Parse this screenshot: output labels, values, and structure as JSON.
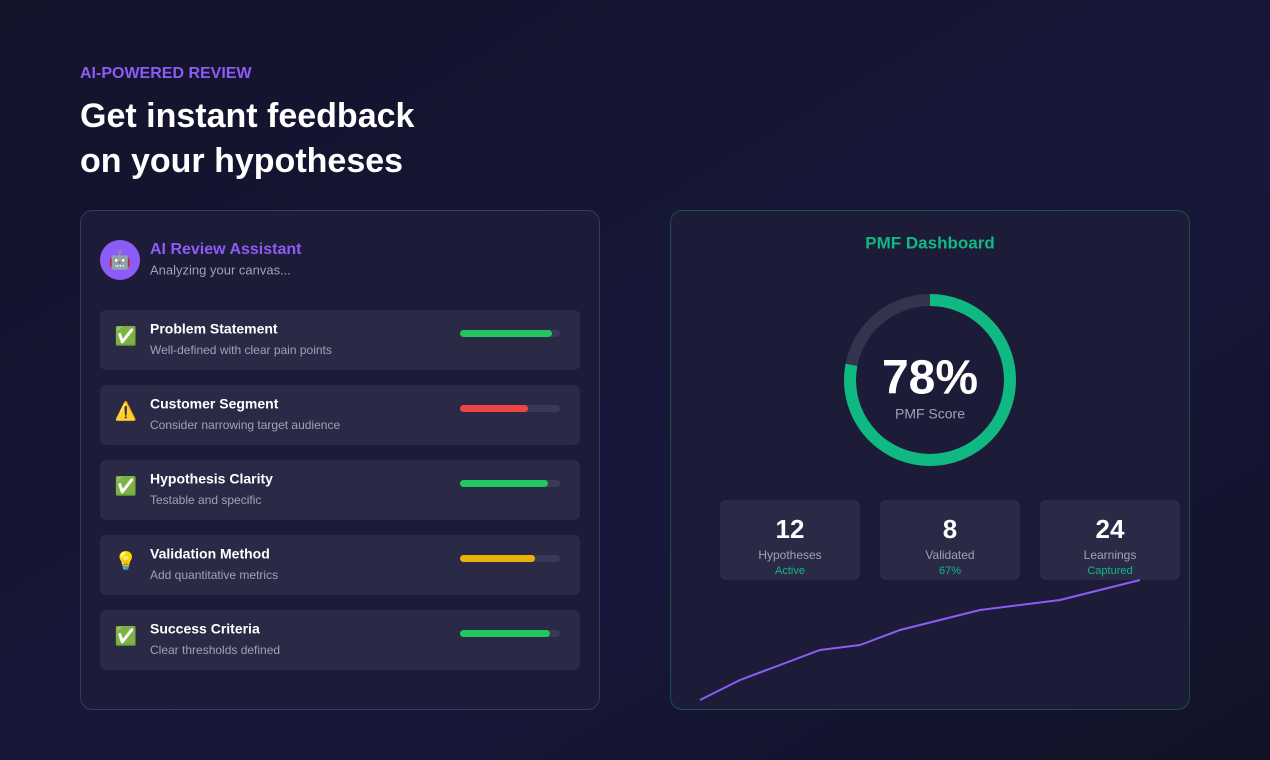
{
  "header": {
    "eyebrow": "AI-POWERED REVIEW",
    "title_lines": [
      "Get instant feedback",
      "on your hypotheses"
    ]
  },
  "assistant": {
    "avatar": "🤖",
    "title": "AI Review Assistant",
    "subtitle": "Analyzing your canvas...",
    "items": [
      {
        "icon": "✅",
        "title": "Problem Statement",
        "note": "Well-defined with clear pain points",
        "progress": 92,
        "color": "#22c55e"
      },
      {
        "icon": "⚠️",
        "title": "Customer Segment",
        "note": "Consider narrowing target audience",
        "progress": 68,
        "color": "#ef4444"
      },
      {
        "icon": "✅",
        "title": "Hypothesis Clarity",
        "note": "Testable and specific",
        "progress": 88,
        "color": "#22c55e"
      },
      {
        "icon": "💡",
        "title": "Validation Method",
        "note": "Add quantitative metrics",
        "progress": 75,
        "color": "#eab308"
      },
      {
        "icon": "✅",
        "title": "Success Criteria",
        "note": "Clear thresholds defined",
        "progress": 90,
        "color": "#22c55e"
      }
    ]
  },
  "dashboard": {
    "title": "PMF Dashboard",
    "score": {
      "value": 78,
      "label": "78%"
    },
    "score_caption": "PMF Score",
    "score_color": "#10b981",
    "stats": [
      {
        "value": 12,
        "label": "Hypotheses",
        "sub": "Active"
      },
      {
        "value": 8,
        "label": "Validated",
        "sub": "67%"
      },
      {
        "value": 24,
        "label": "Learnings",
        "sub": "Captured"
      }
    ],
    "trend": {
      "values": [
        10,
        30,
        45,
        60,
        65,
        80,
        90,
        100,
        105,
        110,
        120,
        130
      ],
      "color": "#8b5cf6"
    }
  }
}
